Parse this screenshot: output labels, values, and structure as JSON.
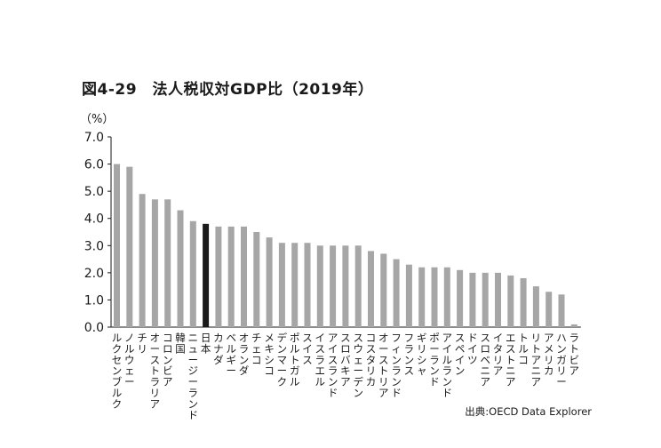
{
  "chart_data": {
    "type": "bar",
    "title": "図4-29　法人税収対GDP比（2019年）",
    "ylabel": "（%）",
    "ylim": [
      0,
      7
    ],
    "yticks": [
      "0.0",
      "1.0",
      "2.0",
      "3.0",
      "4.0",
      "5.0",
      "6.0",
      "7.0"
    ],
    "source": "出典:OECD Data Explorer",
    "bar_color": "#a6a6a6",
    "highlight_color": "#1a1a1a",
    "highlight_category": "日本",
    "categories": [
      "ルクセンブルク",
      "ノルウェー",
      "チリ",
      "オーストラリア",
      "コロンビア",
      "韓国",
      "ニュージーランド",
      "日本",
      "カナダ",
      "ベルギー",
      "オランダ",
      "チェコ",
      "メキシコ",
      "デンマーク",
      "ポルトガル",
      "スイス",
      "イスラエル",
      "アイスランド",
      "スロバキア",
      "スウェーデン",
      "コスタリカ",
      "オーストリア",
      "フィンランド",
      "フランス",
      "ギリシャ",
      "ポーランド",
      "アイルランド",
      "スペイン",
      "ドイツ",
      "スロベニア",
      "イタリア",
      "エストニア",
      "トルコ",
      "リトアニア",
      "アメリカ",
      "ハンガリー",
      "ラトビア"
    ],
    "values": [
      6.0,
      5.9,
      4.9,
      4.7,
      4.7,
      4.3,
      3.9,
      3.8,
      3.7,
      3.7,
      3.7,
      3.5,
      3.3,
      3.1,
      3.1,
      3.1,
      3.0,
      3.0,
      3.0,
      3.0,
      2.8,
      2.7,
      2.5,
      2.3,
      2.2,
      2.2,
      2.2,
      2.1,
      2.0,
      2.0,
      2.0,
      1.9,
      1.8,
      1.5,
      1.3,
      1.2,
      0.1
    ]
  }
}
